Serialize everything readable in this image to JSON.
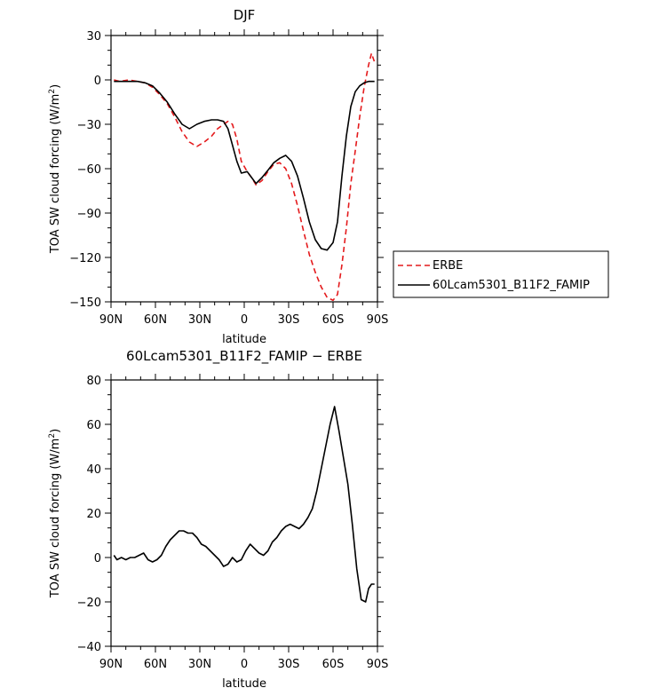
{
  "chart_data": [
    {
      "type": "line",
      "title": "DJF",
      "xlabel": "latitude",
      "ylabel": "TOA SW cloud forcing (W/m",
      "ylabel_sup": "2",
      "ylabel_end": ")",
      "xlim": [
        90,
        -90
      ],
      "ylim": [
        -150,
        30
      ],
      "yticks": [
        30,
        0,
        -30,
        -60,
        -90,
        -120,
        -150
      ],
      "xtick_values": [
        90,
        60,
        30,
        0,
        -30,
        -60,
        -90
      ],
      "xtick_labels": [
        "90N",
        "60N",
        "30N",
        "0",
        "30S",
        "60S",
        "90S"
      ],
      "legend_position": "right",
      "series": [
        {
          "name": "ERBE",
          "color": "#e41a1c",
          "dash": true,
          "x": [
            88,
            84,
            78,
            72,
            67,
            62,
            57,
            52,
            47,
            42,
            37,
            32,
            27,
            22,
            18,
            14,
            11,
            8,
            5,
            2,
            -2,
            -5,
            -8,
            -12,
            -16,
            -20,
            -24,
            -28,
            -32,
            -36,
            -40,
            -44,
            -48,
            -52,
            -56,
            -60,
            -63,
            -66,
            -69,
            -72,
            -75,
            -78,
            -81,
            -84,
            -86,
            -88
          ],
          "y": [
            0,
            -1,
            0,
            -1,
            -2,
            -5,
            -10,
            -16,
            -25,
            -35,
            -42,
            -45,
            -42,
            -38,
            -33,
            -30,
            -28,
            -30,
            -40,
            -55,
            -62,
            -66,
            -71,
            -68,
            -62,
            -57,
            -56,
            -60,
            -70,
            -85,
            -102,
            -118,
            -130,
            -140,
            -147,
            -149,
            -145,
            -125,
            -100,
            -70,
            -48,
            -25,
            -5,
            10,
            18,
            12
          ]
        },
        {
          "name": "60Lcam5301_B11F2_FAMIP",
          "color": "#000000",
          "dash": false,
          "x": [
            88,
            84,
            78,
            72,
            67,
            62,
            57,
            52,
            47,
            42,
            37,
            32,
            27,
            22,
            18,
            14,
            11,
            8,
            5,
            2,
            -2,
            -5,
            -8,
            -12,
            -16,
            -20,
            -24,
            -28,
            -32,
            -36,
            -40,
            -44,
            -48,
            -52,
            -56,
            -60,
            -63,
            -66,
            -69,
            -72,
            -75,
            -78,
            -81,
            -84,
            -86,
            -88
          ],
          "y": [
            -1,
            -1,
            -1,
            -1,
            -2,
            -4,
            -9,
            -15,
            -23,
            -30,
            -33,
            -30,
            -28,
            -27,
            -27,
            -28,
            -33,
            -44,
            -55,
            -63,
            -62,
            -66,
            -70,
            -66,
            -61,
            -56,
            -53,
            -51,
            -55,
            -65,
            -80,
            -96,
            -108,
            -114,
            -115,
            -110,
            -96,
            -65,
            -38,
            -18,
            -8,
            -4,
            -2,
            -1,
            -1,
            -1
          ]
        }
      ]
    },
    {
      "type": "line",
      "title": "60Lcam5301_B11F2_FAMIP − ERBE",
      "xlabel": "latitude",
      "ylabel": "TOA SW cloud forcing (W/m",
      "ylabel_sup": "2",
      "ylabel_end": ")",
      "xlim": [
        90,
        -90
      ],
      "ylim": [
        -40,
        80
      ],
      "yticks": [
        80,
        60,
        40,
        20,
        0,
        -20,
        -40
      ],
      "xtick_values": [
        90,
        60,
        30,
        0,
        -30,
        -60,
        -90
      ],
      "xtick_labels": [
        "90N",
        "60N",
        "30N",
        "0",
        "30S",
        "60S",
        "90S"
      ],
      "series": [
        {
          "color": "#000000",
          "dash": false,
          "x": [
            88,
            86,
            83,
            80,
            77,
            74,
            71,
            68,
            65,
            62,
            59,
            56,
            53,
            50,
            47,
            44,
            41,
            38,
            35,
            32,
            29,
            26,
            23,
            20,
            17,
            14,
            11,
            8,
            5,
            2,
            -1,
            -4,
            -7,
            -10,
            -13,
            -16,
            -19,
            -22,
            -25,
            -28,
            -31,
            -34,
            -37,
            -40,
            -43,
            -46,
            -49,
            -52,
            -55,
            -58,
            -61,
            -64,
            -67,
            -70,
            -73,
            -76,
            -79,
            -82,
            -84,
            -86,
            -88
          ],
          "y": [
            1,
            -1,
            0,
            -1,
            0,
            0,
            1,
            2,
            -1,
            -2,
            -1,
            1,
            5,
            8,
            10,
            12,
            12,
            11,
            11,
            9,
            6,
            5,
            3,
            1,
            -1,
            -4,
            -3,
            0,
            -2,
            -1,
            3,
            6,
            4,
            2,
            1,
            3,
            7,
            9,
            12,
            14,
            15,
            14,
            13,
            15,
            18,
            22,
            30,
            40,
            50,
            60,
            68,
            57,
            45,
            33,
            15,
            -5,
            -19,
            -20,
            -14,
            -12,
            -12
          ]
        }
      ]
    }
  ]
}
